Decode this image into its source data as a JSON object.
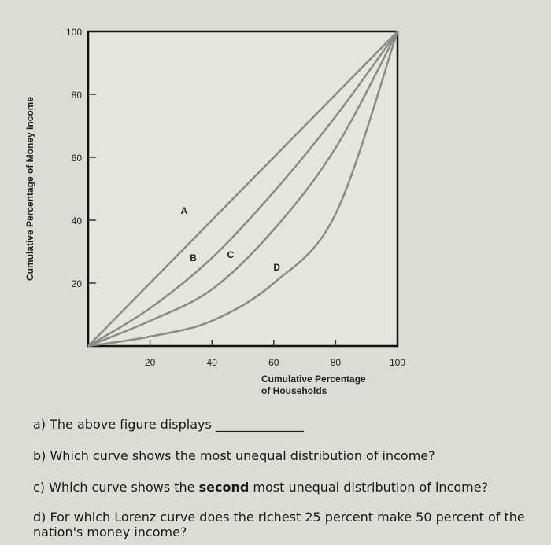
{
  "chart_data": {
    "type": "line",
    "title": "",
    "ylabel": "Cumulative Percentage of Money Income",
    "xlabel": "Cumulative Percentage of Households",
    "xlabel_lines": [
      "Cumulative Percentage",
      "of Households"
    ],
    "xlim": [
      0,
      100
    ],
    "ylim": [
      0,
      100
    ],
    "xticks": [
      20,
      40,
      60,
      80,
      100
    ],
    "yticks": [
      20,
      40,
      60,
      80,
      100
    ],
    "grid": false,
    "x": [
      0,
      20,
      40,
      60,
      80,
      100
    ],
    "series": [
      {
        "name": "A",
        "values": [
          0,
          20,
          40,
          60,
          80,
          100
        ]
      },
      {
        "name": "B",
        "values": [
          0,
          12,
          28,
          49,
          73,
          100
        ]
      },
      {
        "name": "C",
        "values": [
          0,
          8,
          18,
          37,
          63,
          100
        ]
      },
      {
        "name": "D",
        "values": [
          0,
          3,
          8,
          20,
          42,
          100
        ]
      }
    ],
    "line_color": "#8a8a86"
  },
  "questions": {
    "a": "a) The above figure displays ______________",
    "b": "b) Which curve shows the most unequal distribution of income?",
    "c_pre": "c) Which curve shows the ",
    "c_bold": "second",
    "c_post": " most unequal distribution of income?",
    "d": "d) For which Lorenz curve does the richest 25 percent make 50 percent of the nation's money income?"
  }
}
